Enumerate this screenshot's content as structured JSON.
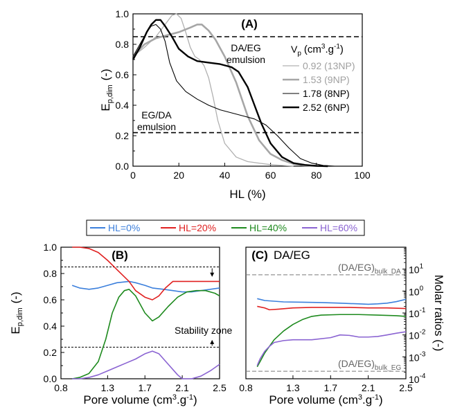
{
  "chart_data": [
    {
      "panel": "A",
      "type": "line",
      "title": "(A)",
      "xlabel": "HL (%)",
      "ylabel": "E",
      "ylabel_sub": "p,dim",
      "ylabel_unit": "(-)",
      "xlim": [
        0,
        100
      ],
      "ylim": [
        0,
        1.0
      ],
      "xticks": [
        "0",
        "20",
        "40",
        "60",
        "80",
        "100"
      ],
      "yticks": [
        "0.0",
        "0.2",
        "0.4",
        "0.6",
        "0.8",
        "1.0"
      ],
      "legend_title": "V",
      "legend_title_sub": "p",
      "legend_title_unit": "(cm",
      "legend_title_sup": "3",
      "legend_title_unit2": ".g",
      "legend_title_sup2": "-1",
      "legend_title_close": ")",
      "legend_position": "right",
      "annotations": {
        "top": [
          "DA/EG",
          "emulsion"
        ],
        "bottom": [
          "EG/DA",
          "emulsion"
        ]
      },
      "hlines": [
        0.85,
        0.22
      ],
      "series": [
        {
          "name": "0.92 (13NP)",
          "color": "#b0b0b0",
          "width": 1.3,
          "x": [
            0,
            5,
            10,
            14,
            17,
            19,
            21,
            23,
            25,
            27,
            29,
            31,
            33,
            35,
            37,
            40,
            45,
            50,
            55,
            60,
            65,
            70
          ],
          "y": [
            0.72,
            0.78,
            0.85,
            0.93,
            0.99,
            1.0,
            0.97,
            0.88,
            0.78,
            0.72,
            0.7,
            0.66,
            0.58,
            0.45,
            0.3,
            0.15,
            0.06,
            0.03,
            0.02,
            0.01,
            0.005,
            0.0
          ]
        },
        {
          "name": "1.53 (9NP)",
          "color": "#a6a6a6",
          "width": 2.6,
          "x": [
            0,
            5,
            10,
            15,
            20,
            25,
            28,
            30,
            33,
            36,
            40,
            45,
            50,
            55,
            60,
            65,
            70,
            75,
            80,
            85
          ],
          "y": [
            0.72,
            0.8,
            0.84,
            0.86,
            0.88,
            0.91,
            0.93,
            0.93,
            0.89,
            0.83,
            0.72,
            0.55,
            0.33,
            0.17,
            0.08,
            0.04,
            0.015,
            0.005,
            0.002,
            0.0
          ]
        },
        {
          "name": "1.78 (8NP)",
          "color": "#000000",
          "width": 1.1,
          "x": [
            0,
            3,
            6,
            8,
            10,
            12,
            14,
            16,
            19,
            23,
            28,
            33,
            38,
            43,
            48,
            53,
            58,
            63,
            68,
            73,
            78,
            83,
            88
          ],
          "y": [
            0.72,
            0.8,
            0.88,
            0.92,
            0.93,
            0.9,
            0.82,
            0.68,
            0.56,
            0.49,
            0.44,
            0.4,
            0.37,
            0.35,
            0.33,
            0.31,
            0.27,
            0.2,
            0.12,
            0.05,
            0.02,
            0.005,
            0.0
          ]
        },
        {
          "name": "2.52 (6NP)",
          "color": "#000000",
          "width": 2.4,
          "x": [
            0,
            3,
            6,
            8,
            10,
            12,
            14,
            17,
            20,
            24,
            28,
            33,
            38,
            43,
            46,
            50,
            53,
            56,
            60,
            65,
            70,
            75,
            80,
            85
          ],
          "y": [
            0.7,
            0.78,
            0.88,
            0.93,
            0.96,
            0.96,
            0.92,
            0.85,
            0.77,
            0.72,
            0.69,
            0.68,
            0.67,
            0.65,
            0.62,
            0.52,
            0.4,
            0.28,
            0.15,
            0.06,
            0.02,
            0.008,
            0.002,
            0.0
          ]
        }
      ]
    },
    {
      "panel": "B",
      "type": "line",
      "title": "(B)",
      "xlabel": "Pore volume (cm",
      "xlabel_sup": "3",
      "xlabel_mid": ".g",
      "xlabel_sup2": "-1",
      "xlabel_end": ")",
      "ylabel": "E",
      "ylabel_sub": "p,dim",
      "ylabel_unit": "(-)",
      "xlim": [
        0.8,
        2.5
      ],
      "ylim": [
        0,
        1.0
      ],
      "xticks": [
        "0.8",
        "1.3",
        "1.7",
        "2.1",
        "2.5"
      ],
      "xtick_values": [
        0.8,
        1.3,
        1.7,
        2.1,
        2.5
      ],
      "yticks": [
        "0.0",
        "0.2",
        "0.4",
        "0.6",
        "0.8",
        "1.0"
      ],
      "hlines": [
        0.85,
        0.24
      ],
      "annotation": "Stability zone",
      "series": [
        {
          "name": "HL=0%",
          "color": "#3b7fdc",
          "x": [
            0.92,
            1.0,
            1.1,
            1.2,
            1.3,
            1.4,
            1.53,
            1.6,
            1.7,
            1.78,
            1.9,
            2.0,
            2.1,
            2.2,
            2.3,
            2.4,
            2.5
          ],
          "y": [
            0.71,
            0.69,
            0.68,
            0.69,
            0.71,
            0.73,
            0.74,
            0.73,
            0.71,
            0.69,
            0.68,
            0.67,
            0.66,
            0.66,
            0.67,
            0.68,
            0.69
          ]
        },
        {
          "name": "HL=20%",
          "color": "#e02020",
          "x": [
            0.92,
            1.0,
            1.1,
            1.2,
            1.3,
            1.4,
            1.53,
            1.6,
            1.7,
            1.78,
            1.85,
            1.92,
            2.0,
            2.1,
            2.2,
            2.3,
            2.4,
            2.5
          ],
          "y": [
            1.0,
            1.0,
            0.99,
            0.96,
            0.9,
            0.83,
            0.74,
            0.67,
            0.62,
            0.6,
            0.63,
            0.69,
            0.74,
            0.74,
            0.74,
            0.74,
            0.74,
            0.74
          ]
        },
        {
          "name": "HL=40%",
          "color": "#1e8a1e",
          "x": [
            0.92,
            1.0,
            1.1,
            1.2,
            1.28,
            1.35,
            1.42,
            1.48,
            1.53,
            1.6,
            1.7,
            1.78,
            1.85,
            1.95,
            2.05,
            2.15,
            2.25,
            2.35,
            2.45,
            2.5
          ],
          "y": [
            0.0,
            0.01,
            0.04,
            0.13,
            0.3,
            0.5,
            0.62,
            0.67,
            0.68,
            0.63,
            0.5,
            0.44,
            0.47,
            0.55,
            0.62,
            0.66,
            0.67,
            0.67,
            0.65,
            0.63
          ]
        },
        {
          "name": "HL=60%",
          "color": "#8a63d2",
          "x": [
            0.92,
            1.0,
            1.1,
            1.2,
            1.3,
            1.4,
            1.5,
            1.6,
            1.7,
            1.78,
            1.85,
            1.95,
            2.05,
            2.1,
            2.2,
            2.3,
            2.4,
            2.5
          ],
          "y": [
            0.0,
            0.0,
            0.01,
            0.03,
            0.06,
            0.09,
            0.12,
            0.15,
            0.19,
            0.21,
            0.19,
            0.11,
            0.03,
            0.0,
            0.0,
            0.02,
            0.06,
            0.11
          ]
        }
      ]
    },
    {
      "panel": "C",
      "type": "line",
      "title": "(C)",
      "subtitle": "DA/EG",
      "xlabel": "Pore volume (cm",
      "xlabel_sup": "3",
      "xlabel_mid": ".g",
      "xlabel_sup2": "-1",
      "xlabel_end": ")",
      "ylabel": "Molar ratios (-)",
      "yscale": "log",
      "xlim": [
        0.8,
        2.5
      ],
      "ylim": [
        0.0001,
        100
      ],
      "xticks": [
        "0.8",
        "1.3",
        "1.7",
        "2.1",
        "2.5"
      ],
      "xtick_values": [
        0.8,
        1.3,
        1.7,
        2.1,
        2.5
      ],
      "ytick_exponents": [
        "1",
        "0",
        "-1",
        "-2",
        "-3",
        "-4"
      ],
      "ytick_base": "10",
      "ref_lines": [
        {
          "label": "(DA/EG)",
          "sub": "bulk_DA",
          "value": 5.5
        },
        {
          "label": "(DA/EG)",
          "sub": "bulk_EG",
          "value": 0.00022
        }
      ],
      "series": [
        {
          "name": "HL=0%",
          "color": "#3b7fdc",
          "x": [
            0.92,
            1.0,
            1.2,
            1.4,
            1.6,
            1.8,
            2.0,
            2.1,
            2.2,
            2.3,
            2.4,
            2.5
          ],
          "y": [
            0.45,
            0.37,
            0.32,
            0.31,
            0.3,
            0.28,
            0.26,
            0.25,
            0.26,
            0.28,
            0.33,
            0.42
          ]
        },
        {
          "name": "HL=20%",
          "color": "#e02020",
          "x": [
            0.92,
            1.0,
            1.05,
            1.15,
            1.3,
            1.5,
            1.7,
            1.9,
            2.1,
            2.3,
            2.5
          ],
          "y": [
            0.2,
            0.17,
            0.14,
            0.15,
            0.17,
            0.18,
            0.18,
            0.18,
            0.17,
            0.17,
            0.16
          ]
        },
        {
          "name": "HL=40%",
          "color": "#1e8a1e",
          "x": [
            0.92,
            0.95,
            1.0,
            1.05,
            1.1,
            1.2,
            1.3,
            1.4,
            1.5,
            1.6,
            1.8,
            2.0,
            2.2,
            2.4,
            2.5
          ],
          "y": [
            0.00035,
            0.0006,
            0.0015,
            0.003,
            0.006,
            0.015,
            0.03,
            0.05,
            0.07,
            0.08,
            0.085,
            0.085,
            0.08,
            0.075,
            0.07
          ]
        },
        {
          "name": "HL=60%",
          "color": "#8a63d2",
          "x": [
            0.92,
            0.95,
            1.0,
            1.05,
            1.1,
            1.2,
            1.3,
            1.5,
            1.7,
            1.8,
            1.9,
            2.0,
            2.1,
            2.2,
            2.3,
            2.4,
            2.5
          ],
          "y": [
            0.0004,
            0.0008,
            0.0018,
            0.003,
            0.0045,
            0.0055,
            0.006,
            0.006,
            0.0075,
            0.01,
            0.0095,
            0.008,
            0.008,
            0.0085,
            0.01,
            0.012,
            0.014
          ]
        }
      ]
    }
  ],
  "legend_bottom": [
    {
      "label": "HL=0%",
      "color": "#3b7fdc"
    },
    {
      "label": "HL=20%",
      "color": "#e02020"
    },
    {
      "label": "HL=40%",
      "color": "#1e8a1e"
    },
    {
      "label": "HL=60%",
      "color": "#8a63d2"
    }
  ]
}
